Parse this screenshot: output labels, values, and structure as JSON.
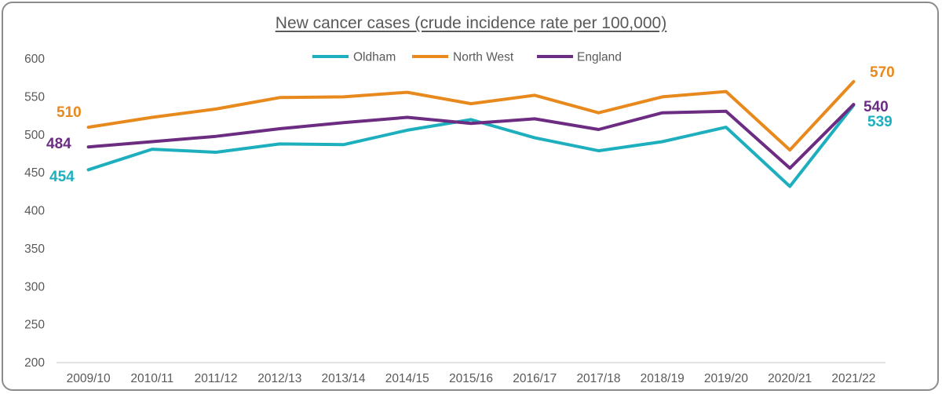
{
  "chart_data": {
    "type": "line",
    "title": "New cancer cases (crude incidence rate per 100,000)",
    "xlabel": "",
    "ylabel": "",
    "categories": [
      "2009/10",
      "2010/11",
      "2011/12",
      "2012/13",
      "2013/14",
      "2014/15",
      "2015/16",
      "2016/17",
      "2017/18",
      "2018/19",
      "2019/20",
      "2020/21",
      "2021/22"
    ],
    "ylim": [
      200,
      600
    ],
    "yticks": [
      200,
      250,
      300,
      350,
      400,
      450,
      500,
      550,
      600
    ],
    "grid": false,
    "legend_position": "top-center",
    "series": [
      {
        "name": "Oldham",
        "color": "#1eafbf",
        "values": [
          454,
          481,
          477,
          488,
          487,
          506,
          520,
          496,
          479,
          491,
          510,
          432,
          539
        ]
      },
      {
        "name": "North West",
        "color": "#e8891d",
        "values": [
          510,
          523,
          534,
          549,
          550,
          556,
          541,
          552,
          529,
          550,
          557,
          480,
          570
        ]
      },
      {
        "name": "England",
        "color": "#6b2c82",
        "values": [
          484,
          491,
          498,
          508,
          516,
          523,
          515,
          521,
          507,
          529,
          531,
          456,
          540
        ]
      }
    ],
    "annotations": [
      {
        "series": "North West",
        "text": "510"
      },
      {
        "series": "England",
        "text": "484"
      },
      {
        "series": "Oldham",
        "text": "454"
      },
      {
        "series": "North West",
        "text": "570"
      },
      {
        "series": "England",
        "text": "540"
      },
      {
        "series": "Oldham",
        "text": "539"
      }
    ]
  }
}
